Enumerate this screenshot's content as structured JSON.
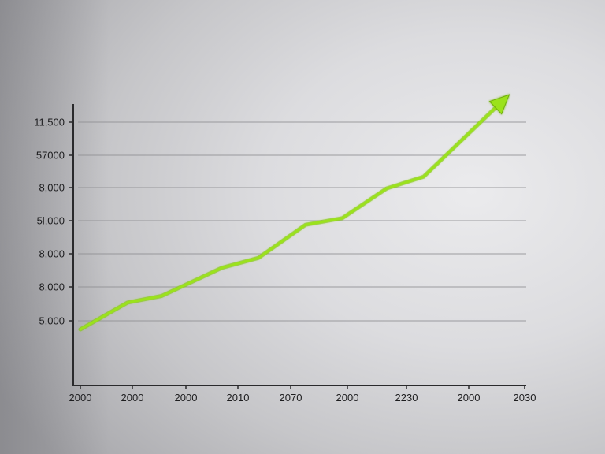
{
  "colors": {
    "line": "#9be21c",
    "line_glow": "#6fae0a",
    "axis": "#2a2a2c",
    "grid": "#8e8e92"
  },
  "chart_data": {
    "type": "line",
    "title": "",
    "xlabel": "",
    "ylabel": "",
    "y_tick_labels": [
      "11,500",
      "57000",
      "8,000",
      "5l,000",
      "8,000",
      "8,000",
      "5,000"
    ],
    "x_tick_labels": [
      "2000",
      "2000",
      "2000",
      "2010",
      "2070",
      "2000",
      "2230",
      "2000",
      "2030"
    ],
    "grid": "horizontal",
    "legend": "none",
    "arrow_at_end": true,
    "series": [
      {
        "values_in_gridlines": [
          [
            0.0,
            -0.26
          ],
          [
            0.9,
            0.55
          ],
          [
            1.55,
            0.75
          ],
          [
            2.7,
            1.6
          ],
          [
            3.4,
            1.9
          ],
          [
            4.3,
            2.9
          ],
          [
            5.0,
            3.1
          ],
          [
            5.85,
            4.0
          ],
          [
            6.55,
            4.35
          ],
          [
            8.1,
            6.7
          ]
        ]
      }
    ]
  }
}
